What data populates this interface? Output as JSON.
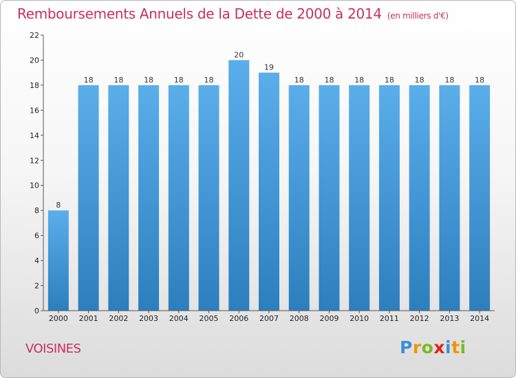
{
  "title": "Remboursements Annuels de la Dette de 2000 à 2014",
  "unit": "(en milliers d'€)",
  "commune": "VOISINES",
  "brand": {
    "letters": [
      "P",
      "r",
      "o",
      "x",
      "i",
      "t",
      "i"
    ],
    "colors": [
      "#3a8fd6",
      "#f29400",
      "#78b82a",
      "#e2231a",
      "#3a8fd6",
      "#f29400",
      "#78b82a"
    ]
  },
  "colors": {
    "accent": "#c72f62",
    "bar_top": "#5aaeea",
    "bar_bottom": "#2d7ebd",
    "axis": "#555555"
  },
  "chart_data": {
    "type": "bar",
    "title": "Remboursements Annuels de la Dette de 2000 à 2014",
    "xlabel": "",
    "ylabel": "",
    "categories": [
      "2000",
      "2001",
      "2002",
      "2003",
      "2004",
      "2005",
      "2006",
      "2007",
      "2008",
      "2009",
      "2010",
      "2011",
      "2012",
      "2013",
      "2014"
    ],
    "values": [
      8,
      18,
      18,
      18,
      18,
      18,
      20,
      19,
      18,
      18,
      18,
      18,
      18,
      18,
      18
    ],
    "ylim": [
      0,
      22
    ],
    "yticks": [
      0,
      2,
      4,
      6,
      8,
      10,
      12,
      14,
      16,
      18,
      20,
      22
    ],
    "grid": false,
    "legend": "none"
  }
}
